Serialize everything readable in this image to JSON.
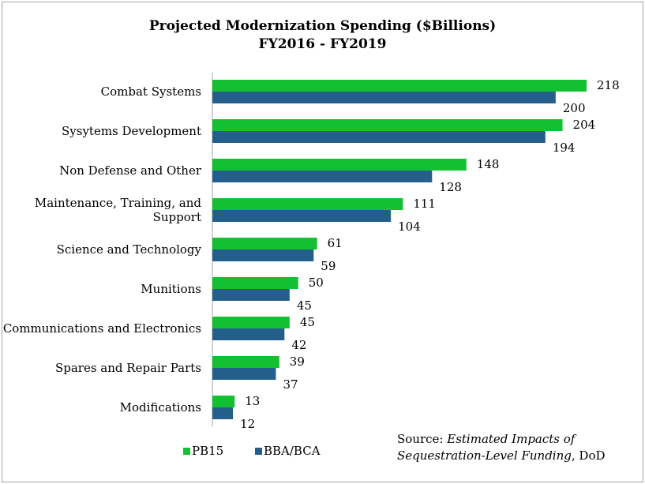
{
  "chart_data": {
    "type": "bar",
    "orientation": "horizontal",
    "title_line1": "Projected Modernization Spending ($Billions)",
    "title_line2": "FY2016 - FY2019",
    "categories": [
      "Combat Systems",
      "Sysytems Development",
      "Non Defense and Other",
      "Maintenance, Training, and Support",
      "Science and Technology",
      "Munitions",
      "Communications and Electronics",
      "Spares and Repair Parts",
      "Modifications"
    ],
    "category_lines": [
      [
        "Combat Systems"
      ],
      [
        "Sysytems Development"
      ],
      [
        "Non Defense and Other"
      ],
      [
        "Maintenance, Training, and",
        "Support"
      ],
      [
        "Science and Technology"
      ],
      [
        "Munitions"
      ],
      [
        "Communications and Electronics"
      ],
      [
        "Spares and Repair Parts"
      ],
      [
        "Modifications"
      ]
    ],
    "series": [
      {
        "name": "PB15",
        "color": "#13c032",
        "values": [
          218,
          204,
          148,
          111,
          61,
          50,
          45,
          39,
          13
        ]
      },
      {
        "name": "BBA/BCA",
        "color": "#245f8c",
        "values": [
          200,
          194,
          128,
          104,
          59,
          45,
          42,
          37,
          12
        ]
      }
    ],
    "xlim": [
      0,
      218
    ],
    "grid": false,
    "legend_position": "bottom-left",
    "data_labels": true
  },
  "source": {
    "prefix": "Source: ",
    "italic": "Estimated Impacts of Sequestration-Level Funding",
    "suffix": ", DoD"
  }
}
